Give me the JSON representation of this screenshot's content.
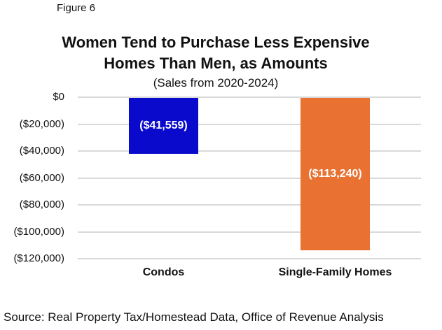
{
  "figure_label": "Figure 6",
  "chart_data": {
    "type": "bar",
    "title_line1": "Women Tend to Purchase Less Expensive",
    "title_line2": "Homes Than Men, as Amounts",
    "subtitle": "(Sales from 2020-2024)",
    "categories": [
      "Condos",
      "Single-Family Homes"
    ],
    "values": [
      -41559,
      -113240
    ],
    "data_labels": [
      "($41,559)",
      "($113,240)"
    ],
    "bar_colors": [
      "#0a0acd",
      "#e97132"
    ],
    "xlabel": "",
    "ylabel": "",
    "ylim": [
      -120000,
      0
    ],
    "grid": true,
    "legend": "none",
    "y_ticks": {
      "values": [
        0,
        -20000,
        -40000,
        -60000,
        -80000,
        -100000,
        -120000
      ],
      "labels": [
        "$0",
        "($20,000)",
        "($40,000)",
        "($60,000)",
        "($80,000)",
        "($100,000)",
        "($120,000)"
      ]
    }
  },
  "source": "Source: Real Property Tax/Homestead Data, Office of Revenue Analysis"
}
